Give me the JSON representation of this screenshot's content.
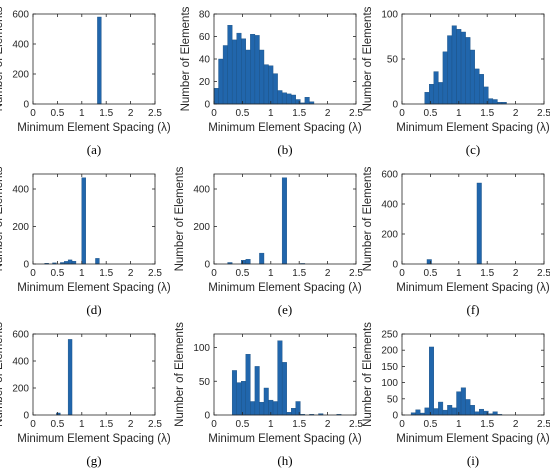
{
  "figure": {
    "xlabel": "Minimum Element Spacing (λ)",
    "ylabel": "Number of Elements",
    "bar_color": "#2166ac",
    "bar_edge": "#1b4f80"
  },
  "chart_data": [
    {
      "panel_label": "(a)",
      "type": "bar",
      "xlim": [
        0,
        2.5
      ],
      "ylim": [
        0,
        600
      ],
      "xticks": [
        "0",
        "0.5",
        "1",
        "1.5",
        "2",
        "2.5"
      ],
      "yticks": [
        "0",
        "200",
        "400",
        "600"
      ],
      "bin_width": 0.08,
      "bars": [
        {
          "x": 1.36,
          "y": 580
        }
      ]
    },
    {
      "panel_label": "(b)",
      "type": "bar",
      "xlim": [
        0,
        2.5
      ],
      "ylim": [
        0,
        80
      ],
      "xticks": [
        "0",
        "0.5",
        "1",
        "1.5",
        "2",
        "2.5"
      ],
      "yticks": [
        "0",
        "20",
        "40",
        "60",
        "80"
      ],
      "bin_width": 0.08,
      "bars": [
        {
          "x": 0.04,
          "y": 14
        },
        {
          "x": 0.12,
          "y": 40
        },
        {
          "x": 0.2,
          "y": 52
        },
        {
          "x": 0.28,
          "y": 70
        },
        {
          "x": 0.36,
          "y": 57
        },
        {
          "x": 0.44,
          "y": 63
        },
        {
          "x": 0.52,
          "y": 58
        },
        {
          "x": 0.6,
          "y": 48
        },
        {
          "x": 0.68,
          "y": 62
        },
        {
          "x": 0.76,
          "y": 61
        },
        {
          "x": 0.84,
          "y": 48
        },
        {
          "x": 0.92,
          "y": 35
        },
        {
          "x": 1.0,
          "y": 34
        },
        {
          "x": 1.08,
          "y": 27
        },
        {
          "x": 1.16,
          "y": 12
        },
        {
          "x": 1.24,
          "y": 10
        },
        {
          "x": 1.32,
          "y": 9
        },
        {
          "x": 1.4,
          "y": 8
        },
        {
          "x": 1.48,
          "y": 4
        },
        {
          "x": 1.56,
          "y": 1
        },
        {
          "x": 1.64,
          "y": 6
        },
        {
          "x": 1.72,
          "y": 2
        }
      ]
    },
    {
      "panel_label": "(c)",
      "type": "bar",
      "xlim": [
        0,
        2.5
      ],
      "ylim": [
        0,
        100
      ],
      "xticks": [
        "0",
        "0.5",
        "1",
        "1.5",
        "2",
        "2.5"
      ],
      "yticks": [
        "0",
        "50",
        "100"
      ],
      "bin_width": 0.08,
      "bars": [
        {
          "x": 0.44,
          "y": 13
        },
        {
          "x": 0.52,
          "y": 22
        },
        {
          "x": 0.6,
          "y": 36
        },
        {
          "x": 0.68,
          "y": 24
        },
        {
          "x": 0.76,
          "y": 58
        },
        {
          "x": 0.84,
          "y": 76
        },
        {
          "x": 0.92,
          "y": 87
        },
        {
          "x": 1.0,
          "y": 83
        },
        {
          "x": 1.08,
          "y": 80
        },
        {
          "x": 1.16,
          "y": 74
        },
        {
          "x": 1.24,
          "y": 60
        },
        {
          "x": 1.32,
          "y": 39
        },
        {
          "x": 1.4,
          "y": 33
        },
        {
          "x": 1.48,
          "y": 19
        },
        {
          "x": 1.56,
          "y": 6
        },
        {
          "x": 1.64,
          "y": 5
        },
        {
          "x": 1.72,
          "y": 2
        },
        {
          "x": 1.8,
          "y": 2
        }
      ]
    },
    {
      "panel_label": "(d)",
      "type": "bar",
      "xlim": [
        0,
        2.5
      ],
      "ylim": [
        0,
        480
      ],
      "xticks": [
        "0",
        "0.5",
        "1",
        "1.5",
        "2",
        "2.5"
      ],
      "yticks": [
        "0",
        "200",
        "400"
      ],
      "bin_width": 0.08,
      "bars": [
        {
          "x": 0.28,
          "y": 4
        },
        {
          "x": 0.44,
          "y": 6
        },
        {
          "x": 0.6,
          "y": 8
        },
        {
          "x": 0.68,
          "y": 14
        },
        {
          "x": 0.76,
          "y": 22
        },
        {
          "x": 0.84,
          "y": 15
        },
        {
          "x": 1.04,
          "y": 460
        },
        {
          "x": 1.32,
          "y": 30
        }
      ]
    },
    {
      "panel_label": "(e)",
      "type": "bar",
      "xlim": [
        0,
        2.5
      ],
      "ylim": [
        0,
        480
      ],
      "xticks": [
        "0",
        "0.5",
        "1",
        "1.5",
        "2",
        "2.5"
      ],
      "yticks": [
        "0",
        "200",
        "400"
      ],
      "bin_width": 0.08,
      "bars": [
        {
          "x": 0.28,
          "y": 8
        },
        {
          "x": 0.52,
          "y": 20
        },
        {
          "x": 0.6,
          "y": 25
        },
        {
          "x": 0.84,
          "y": 58
        },
        {
          "x": 1.24,
          "y": 460
        },
        {
          "x": 1.56,
          "y": 3
        }
      ]
    },
    {
      "panel_label": "(f)",
      "type": "bar",
      "xlim": [
        0,
        2.5
      ],
      "ylim": [
        0,
        600
      ],
      "xticks": [
        "0",
        "0.5",
        "1",
        "1.5",
        "2",
        "2.5"
      ],
      "yticks": [
        "0",
        "200",
        "400",
        "600"
      ],
      "bin_width": 0.08,
      "bars": [
        {
          "x": 0.48,
          "y": 30
        },
        {
          "x": 1.36,
          "y": 540
        }
      ]
    },
    {
      "panel_label": "(g)",
      "type": "bar",
      "xlim": [
        0,
        2.5
      ],
      "ylim": [
        0,
        600
      ],
      "xticks": [
        "0",
        "0.5",
        "1",
        "1.5",
        "2",
        "2.5"
      ],
      "yticks": [
        "0",
        "200",
        "400",
        "600"
      ],
      "bin_width": 0.08,
      "bars": [
        {
          "x": 0.52,
          "y": 15
        },
        {
          "x": 0.76,
          "y": 560
        }
      ]
    },
    {
      "panel_label": "(h)",
      "type": "bar",
      "xlim": [
        0,
        2.5
      ],
      "ylim": [
        0,
        120
      ],
      "xticks": [
        "0",
        "0.5",
        "1",
        "1.5",
        "2",
        "2.5"
      ],
      "yticks": [
        "0",
        "50",
        "100"
      ],
      "bin_width": 0.08,
      "bars": [
        {
          "x": 0.36,
          "y": 66
        },
        {
          "x": 0.44,
          "y": 48
        },
        {
          "x": 0.52,
          "y": 50
        },
        {
          "x": 0.6,
          "y": 90
        },
        {
          "x": 0.68,
          "y": 20
        },
        {
          "x": 0.76,
          "y": 72
        },
        {
          "x": 0.84,
          "y": 19
        },
        {
          "x": 0.92,
          "y": 40
        },
        {
          "x": 1.0,
          "y": 22
        },
        {
          "x": 1.08,
          "y": 20
        },
        {
          "x": 1.16,
          "y": 110
        },
        {
          "x": 1.24,
          "y": 78
        },
        {
          "x": 1.32,
          "y": 4
        },
        {
          "x": 1.4,
          "y": 10
        },
        {
          "x": 1.48,
          "y": 20
        },
        {
          "x": 1.56,
          "y": 1
        },
        {
          "x": 1.72,
          "y": 1
        },
        {
          "x": 1.88,
          "y": 2
        },
        {
          "x": 2.2,
          "y": 1
        }
      ]
    },
    {
      "panel_label": "(i)",
      "type": "bar",
      "xlim": [
        0,
        2.5
      ],
      "ylim": [
        0,
        250
      ],
      "xticks": [
        "0",
        "0.5",
        "1",
        "1.5",
        "2",
        "2.5"
      ],
      "yticks": [
        "0",
        "50",
        "100",
        "150",
        "200",
        "250"
      ],
      "bin_width": 0.08,
      "bars": [
        {
          "x": 0.2,
          "y": 7
        },
        {
          "x": 0.28,
          "y": 16
        },
        {
          "x": 0.36,
          "y": 6
        },
        {
          "x": 0.44,
          "y": 22
        },
        {
          "x": 0.52,
          "y": 210
        },
        {
          "x": 0.6,
          "y": 20
        },
        {
          "x": 0.68,
          "y": 40
        },
        {
          "x": 0.76,
          "y": 15
        },
        {
          "x": 0.84,
          "y": 30
        },
        {
          "x": 0.92,
          "y": 22
        },
        {
          "x": 1.0,
          "y": 72
        },
        {
          "x": 1.08,
          "y": 84
        },
        {
          "x": 1.16,
          "y": 48
        },
        {
          "x": 1.24,
          "y": 30
        },
        {
          "x": 1.32,
          "y": 10
        },
        {
          "x": 1.4,
          "y": 18
        },
        {
          "x": 1.48,
          "y": 12
        },
        {
          "x": 1.56,
          "y": 4
        },
        {
          "x": 1.64,
          "y": 10
        },
        {
          "x": 1.72,
          "y": 2
        }
      ]
    }
  ]
}
